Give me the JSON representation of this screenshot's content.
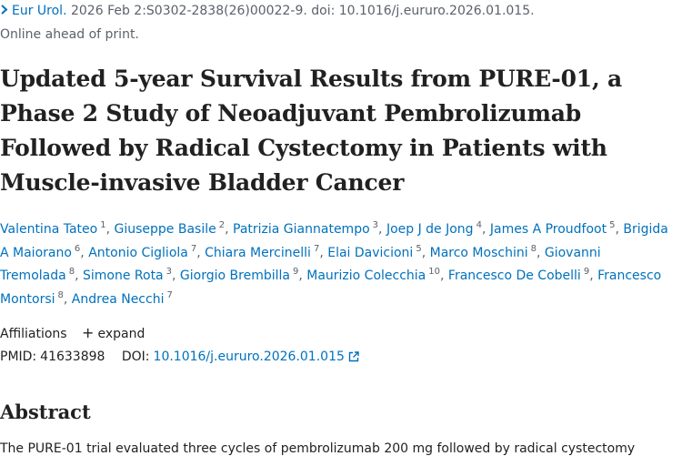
{
  "citation": {
    "journal": "Eur Urol.",
    "details": "2026 Feb 2:S0302-2838(26)00022-9. doi: 10.1016/j.eururo.2026.01.015."
  },
  "status": "Online ahead of print.",
  "title": "Updated 5-year Survival Results from PURE-01, a Phase 2 Study of Neoadjuvant Pembrolizumab Followed by Radical Cystectomy in Patients with Muscle-invasive Bladder Cancer",
  "authors": [
    {
      "name": "Valentina Tateo",
      "sup": "1"
    },
    {
      "name": "Giuseppe Basile",
      "sup": "2"
    },
    {
      "name": "Patrizia Giannatempo",
      "sup": "3"
    },
    {
      "name": "Joep J de Jong",
      "sup": "4"
    },
    {
      "name": "James A Proudfoot",
      "sup": "5"
    },
    {
      "name": "Brigida A Maiorano",
      "sup": "6"
    },
    {
      "name": "Antonio Cigliola",
      "sup": "7"
    },
    {
      "name": "Chiara Mercinelli",
      "sup": "7"
    },
    {
      "name": "Elai Davicioni",
      "sup": "5"
    },
    {
      "name": "Marco Moschini",
      "sup": "8"
    },
    {
      "name": "Giovanni Tremolada",
      "sup": "8"
    },
    {
      "name": "Simone Rota",
      "sup": "3"
    },
    {
      "name": "Giorgio Brembilla",
      "sup": "9"
    },
    {
      "name": "Maurizio Colecchia",
      "sup": "10"
    },
    {
      "name": "Francesco De Cobelli",
      "sup": "9"
    },
    {
      "name": "Francesco Montorsi",
      "sup": "8"
    },
    {
      "name": "Andrea Necchi",
      "sup": "7"
    }
  ],
  "affiliations": {
    "label": "Affiliations",
    "toggle": "expand"
  },
  "ids": {
    "pmid_label": "PMID:",
    "pmid": "41633898",
    "doi_label": "DOI:",
    "doi": "10.1016/j.eururo.2026.01.015"
  },
  "abstract": {
    "heading": "Abstract",
    "text": "The PURE-01 trial evaluated three cycles of pembrolizumab 200 mg followed by radical cystectomy"
  }
}
